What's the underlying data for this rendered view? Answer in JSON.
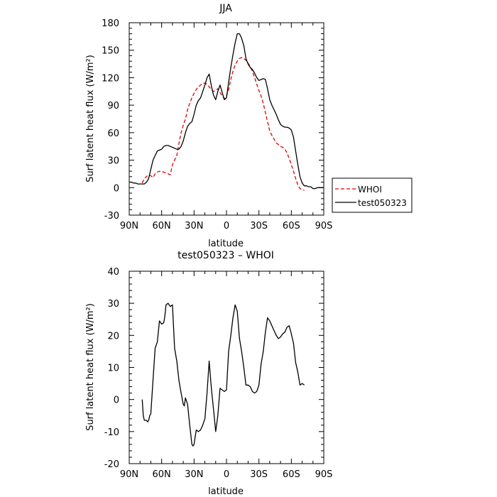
{
  "chart_data": [
    {
      "type": "line",
      "title": "JJA",
      "xlabel": "latitude",
      "ylabel": "Surf latent heat flux (W/m²)",
      "xlim": [
        90,
        -90
      ],
      "ylim": [
        -30,
        180
      ],
      "x_ticks": [
        90,
        60,
        30,
        0,
        -30,
        -60,
        -90
      ],
      "x_tick_labels": [
        "90N",
        "60N",
        "30N",
        "0",
        "30S",
        "60S",
        "90S"
      ],
      "y_ticks": [
        -30,
        0,
        30,
        60,
        90,
        120,
        150,
        180
      ],
      "y_tick_labels": [
        "-30",
        "0",
        "30",
        "60",
        "90",
        "120",
        "150",
        "180"
      ],
      "legend_position": "right",
      "series": [
        {
          "name": "WHOI",
          "color": "#e00000",
          "dash": "dashed",
          "x": [
            78,
            76,
            74,
            72,
            70,
            68,
            66,
            64,
            62,
            60,
            58,
            56,
            54,
            52,
            50,
            48,
            46,
            44,
            42,
            40,
            38,
            36,
            34,
            32,
            30,
            28,
            26,
            24,
            22,
            20,
            18,
            16,
            14,
            12,
            10,
            8,
            6,
            4,
            2,
            0,
            -2,
            -4,
            -6,
            -8,
            -10,
            -12,
            -14,
            -16,
            -18,
            -20,
            -22,
            -24,
            -26,
            -28,
            -30,
            -32,
            -34,
            -36,
            -38,
            -40,
            -42,
            -44,
            -46,
            -48,
            -50,
            -52,
            -54,
            -56,
            -58,
            -60,
            -62,
            -64,
            -66,
            -68,
            -70,
            -72
          ],
          "y": [
            5,
            10,
            12,
            14,
            13,
            11,
            15,
            17,
            18,
            17,
            17,
            16,
            15,
            14,
            25,
            30,
            35,
            48,
            60,
            68,
            75,
            85,
            92,
            98,
            103,
            107,
            110,
            112,
            114,
            114,
            113,
            110,
            107,
            105,
            106,
            108,
            104,
            100,
            97,
            100,
            107,
            118,
            127,
            134,
            138,
            141,
            142,
            141,
            139,
            136,
            132,
            127,
            120,
            113,
            106,
            100,
            92,
            82,
            72,
            62,
            57,
            53,
            49,
            47,
            45,
            44,
            42,
            38,
            32,
            25,
            18,
            10,
            3,
            -1,
            -2,
            -3
          ]
        },
        {
          "name": "test050323",
          "color": "#000000",
          "dash": "solid",
          "x": [
            90,
            88,
            86,
            84,
            82,
            80,
            78,
            76,
            74,
            72,
            70,
            68,
            66,
            64,
            62,
            60,
            58,
            56,
            54,
            52,
            50,
            48,
            46,
            44,
            42,
            40,
            38,
            36,
            34,
            32,
            30,
            28,
            26,
            24,
            22,
            20,
            18,
            16,
            14,
            12,
            10,
            8,
            6,
            4,
            2,
            0,
            -2,
            -4,
            -6,
            -8,
            -10,
            -12,
            -14,
            -16,
            -18,
            -20,
            -22,
            -24,
            -26,
            -28,
            -30,
            -32,
            -34,
            -36,
            -38,
            -40,
            -42,
            -44,
            -46,
            -48,
            -50,
            -52,
            -54,
            -56,
            -58,
            -60,
            -62,
            -64,
            -66,
            -68,
            -70,
            -72,
            -74,
            -76,
            -78,
            -80,
            -82,
            -84,
            -86,
            -88,
            -90
          ],
          "y": [
            6,
            6,
            5,
            5,
            4,
            4,
            4,
            4,
            6,
            10,
            20,
            30,
            35,
            40,
            41,
            42,
            45,
            46,
            46,
            45,
            44,
            43,
            42,
            42,
            45,
            51,
            60,
            67,
            70,
            72,
            80,
            90,
            95,
            98,
            105,
            112,
            120,
            124,
            111,
            101,
            96,
            105,
            112,
            104,
            96,
            98,
            115,
            131,
            145,
            158,
            168,
            168,
            163,
            155,
            141,
            135,
            131,
            129,
            125,
            120,
            117,
            118,
            119,
            118,
            108,
            96,
            90,
            85,
            80,
            74,
            69,
            67,
            66,
            66,
            65,
            63,
            55,
            40,
            25,
            12,
            5,
            2,
            2,
            1,
            1,
            -1,
            -1,
            0,
            0,
            0,
            0
          ]
        }
      ]
    },
    {
      "type": "line",
      "title": "test050323 – WHOI",
      "xlabel": "latitude",
      "ylabel": "Surf latent heat flux (W/m²)",
      "xlim": [
        90,
        -90
      ],
      "ylim": [
        -20,
        40
      ],
      "x_ticks": [
        90,
        60,
        30,
        0,
        -30,
        -60,
        -90
      ],
      "x_tick_labels": [
        "90N",
        "60N",
        "30N",
        "0",
        "30S",
        "60S",
        "90S"
      ],
      "y_ticks": [
        -20,
        -10,
        0,
        10,
        20,
        30,
        40
      ],
      "y_tick_labels": [
        "-20",
        "-10",
        "0",
        "10",
        "20",
        "30",
        "40"
      ],
      "series": [
        {
          "color": "#000000",
          "dash": "solid",
          "x": [
            78,
            77,
            76,
            74,
            73,
            72,
            71,
            70,
            68,
            66,
            65,
            64,
            62,
            60,
            58,
            57,
            56,
            54,
            52,
            50,
            48,
            46,
            44,
            42,
            40,
            39,
            38,
            36,
            34,
            32,
            31,
            30,
            28,
            26,
            24,
            22,
            20,
            18,
            16,
            14,
            12,
            10,
            8,
            6,
            4,
            2,
            0,
            -2,
            -4,
            -6,
            -8,
            -10,
            -12,
            -14,
            -16,
            -18,
            -20,
            -22,
            -24,
            -26,
            -28,
            -30,
            -32,
            -34,
            -36,
            -38,
            -40,
            -42,
            -44,
            -46,
            -48,
            -50,
            -52,
            -54,
            -56,
            -58,
            -60,
            -62,
            -64,
            -66,
            -68,
            -70,
            -72
          ],
          "y": [
            0,
            -5,
            -6.5,
            -6.5,
            -7,
            -6.5,
            -5,
            -4.5,
            6,
            16,
            17,
            18,
            24.5,
            23.5,
            24,
            26,
            29.5,
            30,
            29,
            29.5,
            16,
            12,
            6,
            2,
            -1.5,
            -2,
            0.5,
            -1.5,
            -8,
            -14,
            -14.5,
            -14,
            -9.5,
            -10,
            -9.5,
            -8,
            -6,
            2,
            12,
            3.5,
            -3,
            -10,
            -5,
            3.5,
            3,
            2.5,
            3,
            15,
            20,
            25.5,
            29.5,
            27.5,
            19,
            15,
            10,
            4.5,
            4.5,
            4,
            2.5,
            2,
            2.5,
            4.5,
            11,
            15,
            21,
            25.5,
            24.5,
            23,
            21.5,
            20,
            19,
            19.5,
            20.5,
            21,
            22.5,
            23,
            20.5,
            17.5,
            11.5,
            8.5,
            4.5,
            5,
            4.5
          ]
        }
      ]
    }
  ]
}
